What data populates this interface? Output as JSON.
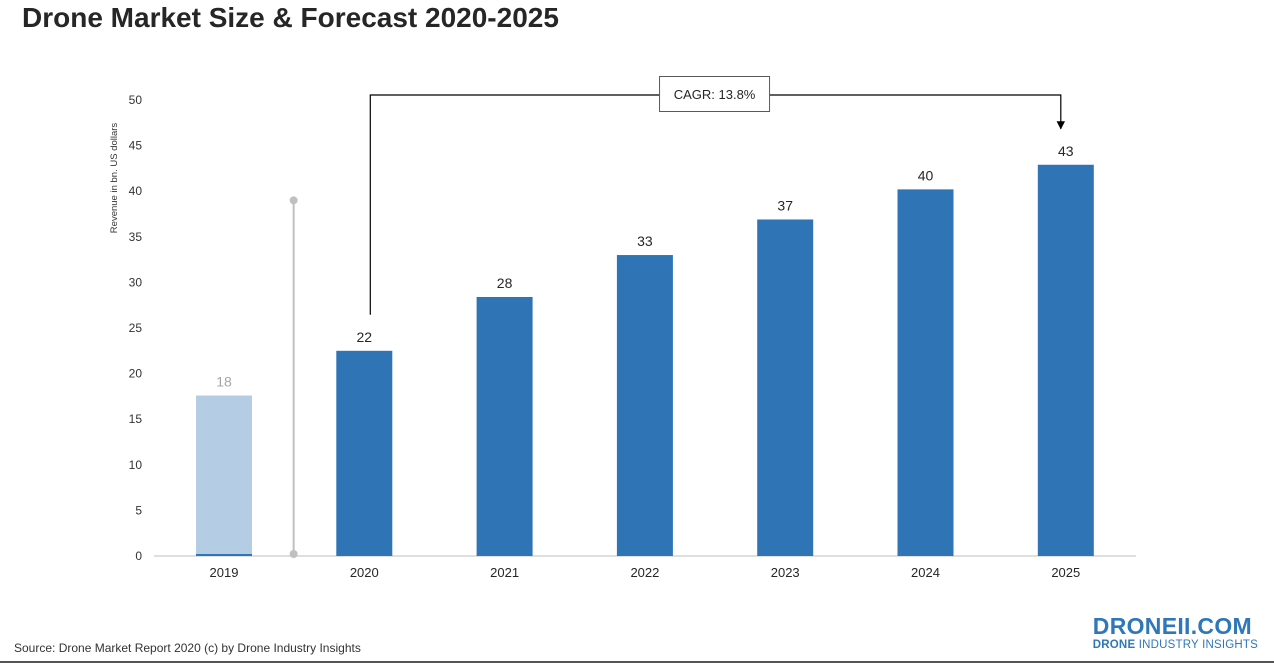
{
  "title": "Drone Market Size & Forecast 2020-2025",
  "source": "Source: Drone Market Report 2020 (c) by Drone Industry Insights",
  "logo": {
    "main": "DRONEII.COM",
    "sub_bold": "DRONE",
    "sub_rest": "INDUSTRY INSIGHTS"
  },
  "colors": {
    "bar": "#2f75b5",
    "bar_historic": "#b4cce4",
    "label_historic": "#a6a6a6",
    "axis": "#bfbfbf",
    "text": "#404040"
  },
  "chart_data": {
    "type": "bar",
    "title": "Drone Market Size & Forecast 2020-2025",
    "xlabel": "",
    "ylabel": "Revenue in bn. US dollars",
    "ylim": [
      0,
      50
    ],
    "yticks": [
      0,
      5,
      10,
      15,
      20,
      25,
      30,
      35,
      40,
      45,
      50
    ],
    "grid": false,
    "categories": [
      "2019",
      "2020",
      "2021",
      "2022",
      "2023",
      "2024",
      "2025"
    ],
    "values": [
      17.6,
      22.5,
      28.4,
      33,
      36.9,
      40.2,
      42.9
    ],
    "data_labels": [
      "18",
      "22",
      "28",
      "33",
      "37",
      "40",
      "43"
    ],
    "historic_categories": [
      "2019"
    ],
    "annotation": {
      "text": "CAGR: 13.8%",
      "from": "2020",
      "to": "2025"
    }
  }
}
